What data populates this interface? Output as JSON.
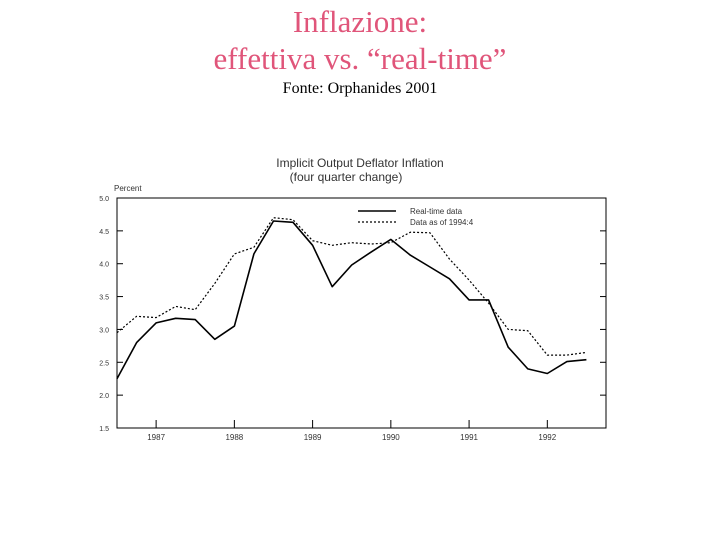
{
  "slide": {
    "title_line1": "Inflazione:",
    "title_line2": "effettiva vs. “real-time”",
    "source": "Fonte: Orphanides 2001",
    "title_color": "#e0557a"
  },
  "chart_data": {
    "type": "line",
    "title": "Implicit Output Deflator Inflation",
    "subtitle": "(four quarter change)",
    "ylabel": "Percent",
    "xlabel": "",
    "ylim": [
      1.5,
      5.0
    ],
    "xlim": [
      1986.5,
      1992.75
    ],
    "yticks": [
      1.5,
      2.0,
      2.5,
      3.0,
      3.5,
      4.0,
      4.5,
      5.0
    ],
    "ytick_labels": [
      "1.5",
      "2.0",
      "2.5",
      "3.0",
      "3.5",
      "4.0",
      "4.5",
      "5.0"
    ],
    "xticks": [
      1987,
      1988,
      1989,
      1990,
      1991,
      1992
    ],
    "xtick_labels": [
      "1987",
      "1988",
      "1989",
      "1990",
      "1991",
      "1992"
    ],
    "grid": false,
    "legend_position": "top-right",
    "series": [
      {
        "name": "Real-time data",
        "style": "solid",
        "color": "#000000",
        "x": [
          1986.5,
          1986.75,
          1987.0,
          1987.25,
          1987.5,
          1987.75,
          1988.0,
          1988.25,
          1988.5,
          1988.75,
          1989.0,
          1989.25,
          1989.5,
          1989.75,
          1990.0,
          1990.25,
          1990.5,
          1990.75,
          1991.0,
          1991.25,
          1991.5,
          1991.75,
          1992.0,
          1992.25,
          1992.5
        ],
        "y": [
          2.25,
          2.8,
          3.1,
          3.17,
          3.15,
          2.85,
          3.05,
          4.15,
          4.65,
          4.63,
          4.28,
          3.65,
          3.98,
          4.18,
          4.37,
          4.13,
          3.95,
          3.77,
          3.45,
          3.45,
          2.73,
          2.4,
          2.33,
          2.51,
          2.54
        ]
      },
      {
        "name": "Data as of 1994:4",
        "style": "dotted",
        "color": "#000000",
        "x": [
          1986.5,
          1986.75,
          1987.0,
          1987.25,
          1987.5,
          1987.75,
          1988.0,
          1988.25,
          1988.5,
          1988.75,
          1989.0,
          1989.25,
          1989.5,
          1989.75,
          1990.0,
          1990.25,
          1990.5,
          1990.75,
          1991.0,
          1991.25,
          1991.5,
          1991.75,
          1992.0,
          1992.25,
          1992.5
        ],
        "y": [
          2.95,
          3.2,
          3.18,
          3.35,
          3.3,
          3.7,
          4.15,
          4.25,
          4.7,
          4.67,
          4.35,
          4.28,
          4.32,
          4.3,
          4.32,
          4.48,
          4.47,
          4.07,
          3.75,
          3.4,
          3.0,
          2.98,
          2.61,
          2.61,
          2.65
        ]
      }
    ]
  }
}
